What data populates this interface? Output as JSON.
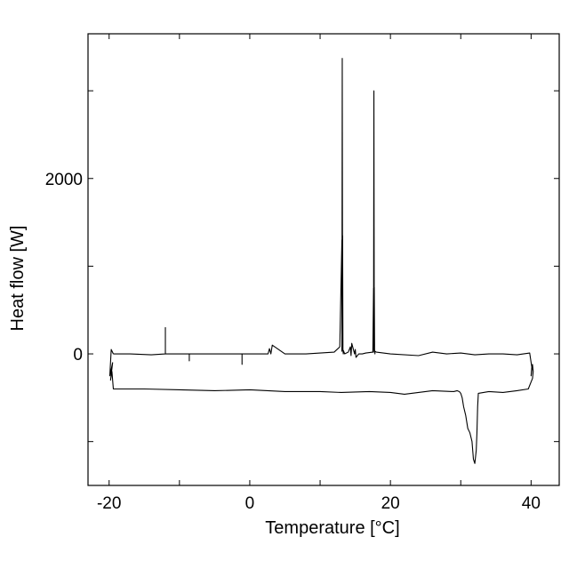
{
  "chart_data": {
    "type": "line",
    "title": "",
    "xlabel": "Temperature [°C]",
    "ylabel": "Heat flow [W]",
    "xlim": [
      -23,
      44
    ],
    "ylim": [
      -1500,
      3650
    ],
    "x_ticks": [
      -20,
      0,
      20,
      40
    ],
    "x_tick_labels": [
      "-20",
      "0",
      "20",
      "40"
    ],
    "x_minor_ticks": [
      -10,
      10,
      30
    ],
    "y_ticks": [
      0,
      2000
    ],
    "y_tick_labels": [
      "0",
      "2000"
    ],
    "y_minor_ticks": [
      -1000,
      1000,
      3000
    ],
    "grid": false,
    "legend": "none",
    "line_color": "#000000",
    "series": [
      {
        "name": "",
        "x": [
          -19.4,
          -17,
          -14,
          -12,
          -12,
          -12,
          -10,
          -8.6,
          -8.6,
          -8.6,
          -4,
          -1.1,
          -1.1,
          -1.1,
          1,
          2.6,
          2.8,
          3,
          3.2,
          5,
          8,
          10,
          12,
          12.8,
          13.1,
          13.1,
          13.15,
          13.2,
          13.2,
          13.25,
          13.3,
          13.3,
          13.5,
          14,
          14.3,
          14.4,
          14.5,
          14.9,
          15,
          15.1,
          15.5,
          16,
          16.5,
          17.5,
          17.6,
          17.6,
          17.65,
          17.7,
          17.7,
          17.75,
          17.8,
          17.8,
          18,
          20,
          24,
          26,
          28,
          30,
          32,
          34,
          36,
          38,
          39.8,
          40.1,
          40.0,
          40.2,
          40.3,
          40.2,
          40.0,
          39.6,
          38,
          36,
          34,
          32.5,
          32.4,
          32.3,
          32.2,
          32.0,
          31.8,
          31.6,
          31.3,
          31.0,
          30.7,
          30.4,
          30.2,
          30.0,
          29.8,
          29.5,
          29,
          26,
          22,
          20,
          17,
          13,
          10,
          5,
          0,
          -5,
          -10,
          -15,
          -19.4,
          -19.6,
          -19.8,
          -19.5,
          -19.9,
          -19.7,
          -19.4
        ],
        "y": [
          0,
          0,
          -10,
          0,
          300,
          0,
          0,
          0,
          -80,
          0,
          0,
          0,
          -120,
          0,
          0,
          0,
          60,
          0,
          100,
          0,
          0,
          10,
          20,
          80,
          1300,
          30,
          3370,
          100,
          1350,
          40,
          0,
          40,
          0,
          20,
          80,
          -20,
          120,
          0,
          50,
          -40,
          0,
          0,
          10,
          20,
          750,
          20,
          3000,
          90,
          760,
          50,
          0,
          30,
          20,
          0,
          -20,
          20,
          0,
          10,
          -10,
          0,
          0,
          -10,
          10,
          -150,
          -250,
          -120,
          -200,
          -280,
          -320,
          -400,
          -420,
          -440,
          -430,
          -450,
          -600,
          -900,
          -1100,
          -1250,
          -1200,
          -1000,
          -900,
          -850,
          -700,
          -600,
          -500,
          -450,
          -430,
          -420,
          -430,
          -420,
          -460,
          -440,
          -430,
          -440,
          -430,
          -430,
          -410,
          -420,
          -410,
          -400,
          -400,
          -200,
          -300,
          -100,
          -250,
          50,
          0
        ]
      }
    ]
  }
}
